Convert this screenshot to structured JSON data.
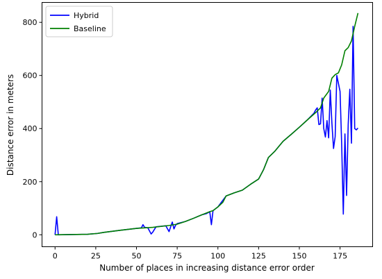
{
  "chart_data": {
    "type": "line",
    "title": "",
    "xlabel": "Number of places in increasing distance error order",
    "ylabel": "Distance error in meters",
    "xlim": [
      -8,
      195
    ],
    "ylim": [
      -45,
      875
    ],
    "xticks": [
      0,
      25,
      50,
      75,
      100,
      125,
      150,
      175
    ],
    "yticks": [
      0,
      200,
      400,
      600,
      800
    ],
    "grid": false,
    "legend_position": "top-left",
    "series": [
      {
        "name": "Hybrid",
        "color": "#0000ff",
        "points": [
          [
            0,
            0
          ],
          [
            1,
            68
          ],
          [
            2,
            0
          ],
          [
            10,
            1
          ],
          [
            20,
            2
          ],
          [
            26,
            5
          ],
          [
            30,
            9
          ],
          [
            40,
            17
          ],
          [
            50,
            24
          ],
          [
            53,
            26
          ],
          [
            54,
            38
          ],
          [
            55,
            28
          ],
          [
            57,
            26
          ],
          [
            59,
            3
          ],
          [
            60,
            10
          ],
          [
            62,
            30
          ],
          [
            68,
            34
          ],
          [
            70,
            12
          ],
          [
            71,
            30
          ],
          [
            72,
            48
          ],
          [
            73,
            22
          ],
          [
            74,
            36
          ],
          [
            75,
            42
          ],
          [
            80,
            50
          ],
          [
            85,
            62
          ],
          [
            90,
            75
          ],
          [
            93,
            80
          ],
          [
            95,
            87
          ],
          [
            96,
            38
          ],
          [
            97,
            91
          ],
          [
            100,
            105
          ],
          [
            105,
            146
          ],
          [
            110,
            158
          ],
          [
            115,
            168
          ],
          [
            120,
            190
          ],
          [
            125,
            210
          ],
          [
            128,
            245
          ],
          [
            131,
            291
          ],
          [
            135,
            315
          ],
          [
            140,
            352
          ],
          [
            145,
            378
          ],
          [
            150,
            405
          ],
          [
            155,
            433
          ],
          [
            159,
            458
          ],
          [
            160,
            470
          ],
          [
            161,
            478
          ],
          [
            162,
            415
          ],
          [
            163,
            418
          ],
          [
            164,
            515
          ],
          [
            165,
            400
          ],
          [
            166,
            368
          ],
          [
            167,
            430
          ],
          [
            168,
            365
          ],
          [
            169,
            545
          ],
          [
            170,
            420
          ],
          [
            171,
            325
          ],
          [
            172,
            370
          ],
          [
            173,
            600
          ],
          [
            174,
            570
          ],
          [
            175,
            540
          ],
          [
            176,
            340
          ],
          [
            177,
            78
          ],
          [
            178,
            380
          ],
          [
            179,
            148
          ],
          [
            180,
            415
          ],
          [
            181,
            548
          ],
          [
            182,
            345
          ],
          [
            183,
            785
          ],
          [
            184,
            400
          ],
          [
            185,
            395
          ],
          [
            186,
            402
          ]
        ]
      },
      {
        "name": "Baseline",
        "color": "#008000",
        "points": [
          [
            0,
            0
          ],
          [
            10,
            1
          ],
          [
            20,
            2
          ],
          [
            26,
            5
          ],
          [
            30,
            9
          ],
          [
            40,
            17
          ],
          [
            50,
            24
          ],
          [
            60,
            28
          ],
          [
            70,
            35
          ],
          [
            75,
            40
          ],
          [
            80,
            50
          ],
          [
            85,
            62
          ],
          [
            90,
            75
          ],
          [
            95,
            87
          ],
          [
            97,
            91
          ],
          [
            100,
            105
          ],
          [
            103,
            122
          ],
          [
            105,
            146
          ],
          [
            110,
            158
          ],
          [
            115,
            168
          ],
          [
            120,
            190
          ],
          [
            125,
            210
          ],
          [
            128,
            245
          ],
          [
            131,
            291
          ],
          [
            135,
            315
          ],
          [
            140,
            352
          ],
          [
            145,
            378
          ],
          [
            150,
            405
          ],
          [
            155,
            433
          ],
          [
            160,
            460
          ],
          [
            163,
            478
          ],
          [
            165,
            515
          ],
          [
            168,
            540
          ],
          [
            170,
            590
          ],
          [
            172,
            603
          ],
          [
            174,
            610
          ],
          [
            176,
            640
          ],
          [
            178,
            693
          ],
          [
            180,
            705
          ],
          [
            182,
            730
          ],
          [
            184,
            785
          ],
          [
            186,
            835
          ]
        ]
      }
    ]
  }
}
